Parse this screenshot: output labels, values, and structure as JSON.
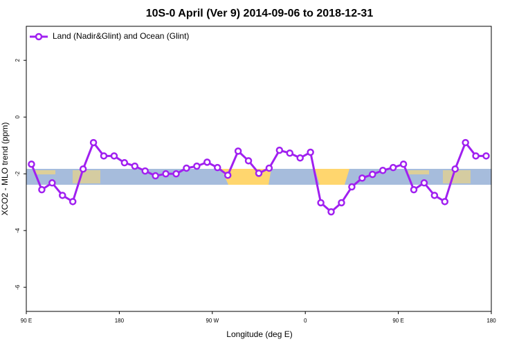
{
  "chart_data": {
    "type": "line",
    "title": "10S-0 April (Ver 9)   2014-09-06 to 2018-12-31",
    "x_label": "Longitude (deg E)",
    "y_label": "XCO2 - MLO trend (ppm)",
    "x": [
      95,
      105,
      115,
      125,
      135,
      145,
      155,
      165,
      175,
      185,
      195,
      205,
      215,
      225,
      235,
      245,
      255,
      265,
      275,
      285,
      295,
      305,
      315,
      325,
      335,
      345,
      355,
      365,
      375,
      385,
      395,
      405,
      415,
      425,
      435,
      445,
      455,
      465,
      475,
      485,
      495,
      505,
      515,
      525,
      535
    ],
    "series": [
      {
        "name": "Land (Nadir&Glint) and Ocean (Glint)",
        "color": "#a020f0",
        "values": [
          -1.66,
          -2.56,
          -2.32,
          -2.76,
          -2.98,
          -1.83,
          -0.9,
          -1.37,
          -1.37,
          -1.61,
          -1.73,
          -1.9,
          -2.07,
          -2.0,
          -2.0,
          -1.8,
          -1.73,
          -1.59,
          -1.78,
          -2.05,
          -1.2,
          -1.54,
          -1.98,
          -1.8,
          -1.17,
          -1.27,
          -1.44,
          -1.24,
          -3.02,
          -3.34,
          -3.02,
          -2.46,
          -2.15,
          -2.02,
          -1.88,
          -1.78,
          -1.66,
          -2.56,
          -2.32,
          -2.76,
          -2.98,
          -1.83,
          -0.9,
          -1.37,
          -1.37
        ]
      }
    ],
    "xlim": [
      90,
      540
    ],
    "xticks": [
      {
        "value": 90,
        "label": "90 E"
      },
      180,
      {
        "value": 270,
        "label": "90 W"
      },
      {
        "value": 360,
        "label": "0"
      },
      {
        "value": 450,
        "label": "90 E"
      },
      {
        "value": 540,
        "label": "180"
      }
    ],
    "ylim": [
      -6.85,
      3.2
    ],
    "yticks": [
      2,
      0,
      -2,
      -4,
      -6
    ],
    "legend": "top-left"
  }
}
